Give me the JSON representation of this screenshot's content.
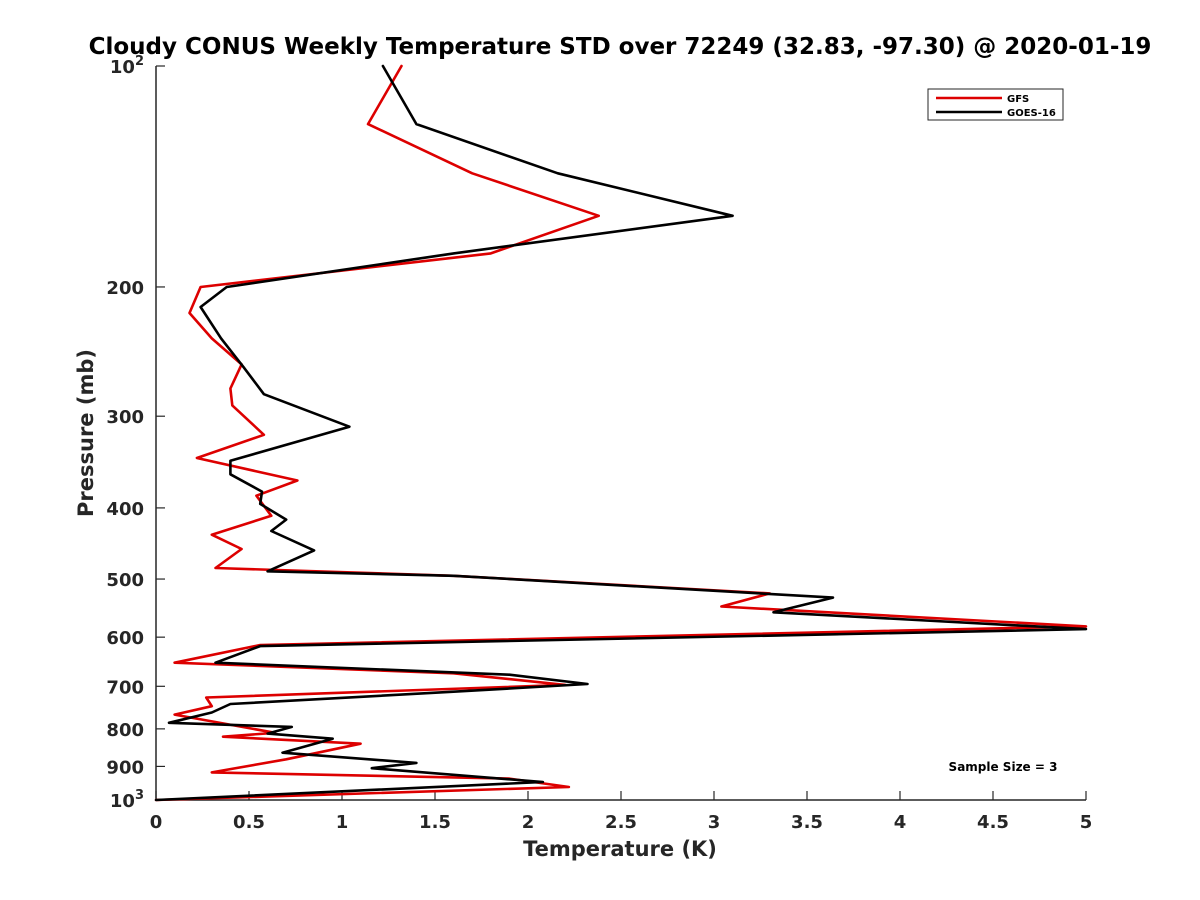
{
  "chart_data": {
    "type": "line",
    "title": "Cloudy CONUS Weekly Temperature STD over 72249 (32.83, -97.30) @ 2020-01-19",
    "xlabel": "Temperature (K)",
    "ylabel": "Pressure (mb)",
    "xlim": [
      0,
      5
    ],
    "ylim": [
      100,
      1000
    ],
    "yscale": "log",
    "yreversed": true,
    "grid": false,
    "legend_position": "top-right",
    "x_ticks": [
      "0",
      "0.5",
      "1",
      "1.5",
      "2",
      "2.5",
      "3",
      "3.5",
      "4",
      "4.5",
      "5"
    ],
    "x_tick_values": [
      0,
      0.5,
      1,
      1.5,
      2,
      2.5,
      3,
      3.5,
      4,
      4.5,
      5
    ],
    "y_ticks": [
      {
        "value": 100,
        "base": "10",
        "exp": "2"
      },
      {
        "value": 200,
        "label": "200"
      },
      {
        "value": 300,
        "label": "300"
      },
      {
        "value": 400,
        "label": "400"
      },
      {
        "value": 500,
        "label": "500"
      },
      {
        "value": 600,
        "label": "600"
      },
      {
        "value": 700,
        "label": "700"
      },
      {
        "value": 800,
        "label": "800"
      },
      {
        "value": 900,
        "label": "900"
      },
      {
        "value": 1000,
        "base": "10",
        "exp": "3"
      }
    ],
    "annotation": "Sample Size = 3",
    "series": [
      {
        "name": "GFS",
        "color": "#dd0000",
        "points": [
          [
            1.32,
            100
          ],
          [
            1.14,
            120
          ],
          [
            1.7,
            140
          ],
          [
            2.38,
            160
          ],
          [
            1.8,
            180
          ],
          [
            0.24,
            200
          ],
          [
            0.18,
            217
          ],
          [
            0.3,
            235
          ],
          [
            0.46,
            255
          ],
          [
            0.4,
            275
          ],
          [
            0.41,
            290
          ],
          [
            0.58,
            318
          ],
          [
            0.22,
            342
          ],
          [
            0.76,
            367
          ],
          [
            0.54,
            385
          ],
          [
            0.62,
            410
          ],
          [
            0.3,
            435
          ],
          [
            0.46,
            455
          ],
          [
            0.32,
            483
          ],
          [
            1.6,
            495
          ],
          [
            3.3,
            523
          ],
          [
            3.04,
            545
          ],
          [
            5.0,
            580
          ],
          [
            0.56,
            615
          ],
          [
            0.1,
            650
          ],
          [
            1.6,
            672
          ],
          [
            2.2,
            697
          ],
          [
            0.27,
            725
          ],
          [
            0.3,
            745
          ],
          [
            0.1,
            765
          ],
          [
            0.64,
            810
          ],
          [
            0.36,
            820
          ],
          [
            1.1,
            838
          ],
          [
            0.7,
            880
          ],
          [
            0.3,
            917
          ],
          [
            1.9,
            935
          ],
          [
            2.22,
            960
          ],
          [
            0.0,
            1000
          ]
        ]
      },
      {
        "name": "GOES-16",
        "color": "#000000",
        "points": [
          [
            1.22,
            100
          ],
          [
            1.4,
            120
          ],
          [
            2.16,
            140
          ],
          [
            3.1,
            160
          ],
          [
            1.6,
            180
          ],
          [
            0.38,
            200
          ],
          [
            0.24,
            213
          ],
          [
            0.35,
            235
          ],
          [
            0.47,
            257
          ],
          [
            0.58,
            280
          ],
          [
            1.04,
            310
          ],
          [
            0.4,
            345
          ],
          [
            0.4,
            360
          ],
          [
            0.57,
            380
          ],
          [
            0.56,
            395
          ],
          [
            0.7,
            415
          ],
          [
            0.62,
            430
          ],
          [
            0.85,
            457
          ],
          [
            0.6,
            488
          ],
          [
            1.6,
            495
          ],
          [
            3.64,
            530
          ],
          [
            3.32,
            555
          ],
          [
            5.0,
            585
          ],
          [
            0.56,
            617
          ],
          [
            0.32,
            650
          ],
          [
            1.9,
            675
          ],
          [
            2.32,
            695
          ],
          [
            1.6,
            712
          ],
          [
            0.4,
            740
          ],
          [
            0.3,
            760
          ],
          [
            0.07,
            785
          ],
          [
            0.73,
            795
          ],
          [
            0.6,
            812
          ],
          [
            0.95,
            825
          ],
          [
            0.68,
            862
          ],
          [
            1.4,
            890
          ],
          [
            1.16,
            905
          ],
          [
            2.08,
            945
          ],
          [
            0.0,
            1000
          ]
        ]
      }
    ]
  }
}
